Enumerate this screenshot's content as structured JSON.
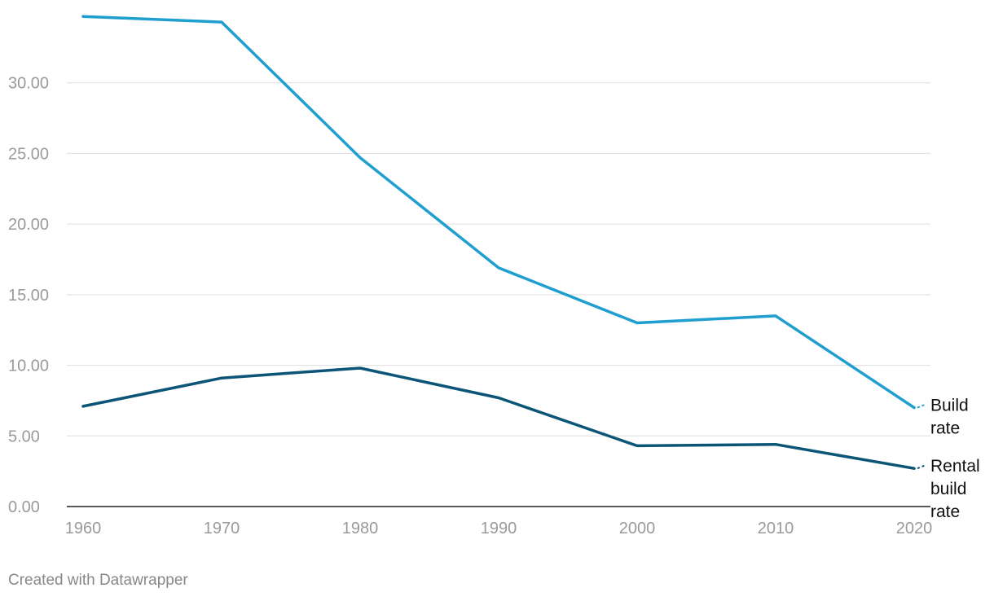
{
  "chart_data": {
    "type": "line",
    "x": [
      1960,
      1970,
      1980,
      1990,
      2000,
      2010,
      2020
    ],
    "ylim": [
      0,
      35
    ],
    "y_ticks": [
      {
        "value": 0,
        "label": "0.00"
      },
      {
        "value": 5,
        "label": "5.00"
      },
      {
        "value": 10,
        "label": "10.00"
      },
      {
        "value": 15,
        "label": "15.00"
      },
      {
        "value": 20,
        "label": "20.00"
      },
      {
        "value": 25,
        "label": "25.00"
      },
      {
        "value": 30,
        "label": "30.00"
      }
    ],
    "x_ticks": [
      "1960",
      "1970",
      "1980",
      "1990",
      "2000",
      "2010",
      "2020"
    ],
    "grid": true,
    "series": [
      {
        "name": "Build rate",
        "label_lines": [
          "Build",
          "rate"
        ],
        "color": "#1f9fcf",
        "values": [
          34.7,
          34.3,
          24.7,
          16.9,
          13.0,
          13.5,
          7.0
        ]
      },
      {
        "name": "Rental build rate",
        "label_lines": [
          "Rental",
          "build",
          "rate"
        ],
        "color": "#0c5577",
        "values": [
          7.1,
          9.1,
          9.8,
          7.7,
          4.3,
          4.4,
          2.7
        ]
      }
    ]
  },
  "footer": {
    "credit": "Created with Datawrapper"
  }
}
